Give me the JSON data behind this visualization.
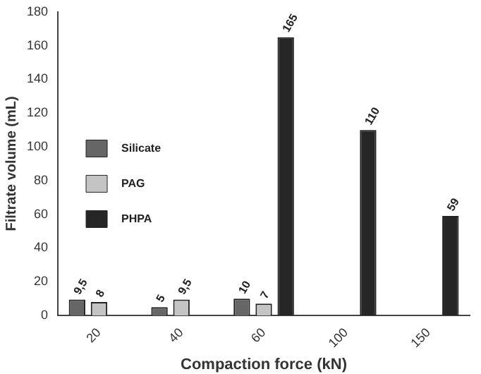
{
  "chart_data": {
    "type": "bar",
    "xlabel": "Compaction force (kN)",
    "ylabel": "Filtrate volume (mL)",
    "categories": [
      "20",
      "40",
      "60",
      "100",
      "150"
    ],
    "series": [
      {
        "name": "Silicate",
        "color": "#666666",
        "values": [
          9.5,
          5,
          10,
          null,
          null
        ],
        "value_labels": [
          "9,5",
          "5",
          "10",
          null,
          null
        ]
      },
      {
        "name": "PAG",
        "color": "#c4c4c4",
        "values": [
          8,
          9.5,
          7,
          null,
          null
        ],
        "value_labels": [
          "8",
          "9,5",
          "7",
          null,
          null
        ]
      },
      {
        "name": "PHPA",
        "color": "#262626",
        "values": [
          null,
          null,
          165,
          110,
          59
        ],
        "value_labels": [
          null,
          null,
          "165",
          "110",
          "59"
        ]
      }
    ],
    "ylim": [
      0,
      180
    ],
    "yticks": [
      0,
      20,
      40,
      60,
      80,
      100,
      120,
      140,
      160,
      180
    ],
    "grid": false,
    "legend": "left"
  }
}
